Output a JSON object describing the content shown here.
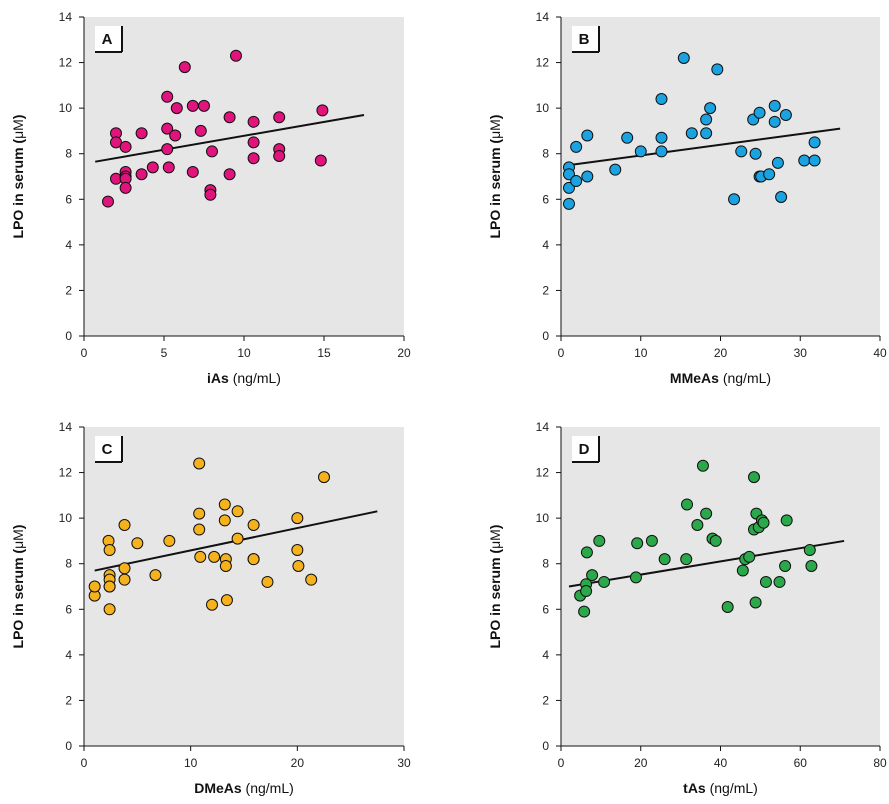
{
  "chart_data": [
    {
      "type": "scatter",
      "panel_label": "A",
      "ylabel": "LPO in serum (μM)",
      "ylabel_main": "LPO in serum (",
      "ylabel_unit": "μM",
      "ylabel_close": ")",
      "xlabel_bold": "iAs",
      "xlabel_unit": " (ng/mL)",
      "xlim": [
        0,
        20
      ],
      "ylim": [
        0,
        14
      ],
      "xticks": [
        "0",
        "5",
        "10",
        "15",
        "20"
      ],
      "yticks": [
        "0",
        "2",
        "4",
        "6",
        "8",
        "10",
        "12",
        "14"
      ],
      "grid": false,
      "color": "#e0147c",
      "trendline": [
        [
          0.7,
          7.65
        ],
        [
          17.5,
          9.7
        ]
      ],
      "x": [
        1.5,
        2.0,
        2.0,
        2.0,
        2.6,
        2.6,
        2.6,
        2.6,
        2.6,
        3.6,
        3.6,
        4.3,
        5.2,
        5.2,
        5.2,
        5.3,
        5.7,
        5.8,
        6.3,
        6.8,
        6.8,
        7.3,
        7.5,
        7.9,
        7.9,
        8.0,
        9.1,
        9.1,
        9.5,
        10.6,
        10.6,
        10.6,
        12.2,
        12.2,
        12.2,
        14.8,
        14.9
      ],
      "y": [
        5.9,
        8.9,
        8.5,
        6.9,
        8.3,
        7.2,
        7.0,
        6.9,
        6.5,
        8.9,
        7.1,
        7.4,
        10.5,
        9.1,
        8.2,
        7.4,
        8.8,
        10.0,
        11.8,
        10.1,
        7.2,
        9.0,
        10.1,
        6.4,
        6.2,
        8.1,
        9.6,
        7.1,
        12.3,
        9.4,
        8.5,
        7.8,
        9.6,
        8.2,
        7.9,
        7.7,
        9.9
      ]
    },
    {
      "type": "scatter",
      "panel_label": "B",
      "ylabel": "LPO in serum (μM)",
      "ylabel_main": "LPO in serum (",
      "ylabel_unit": "μM",
      "ylabel_close": ")",
      "xlabel_bold": "MMeAs",
      "xlabel_unit": " (ng/mL)",
      "xlim": [
        0,
        40
      ],
      "ylim": [
        0,
        14
      ],
      "xticks": [
        "0",
        "10",
        "20",
        "30",
        "40"
      ],
      "yticks": [
        "0",
        "2",
        "4",
        "6",
        "8",
        "10",
        "12",
        "14"
      ],
      "grid": false,
      "color": "#1aa3e0",
      "trendline": [
        [
          1,
          7.5
        ],
        [
          35,
          9.1
        ]
      ],
      "x": [
        1.0,
        1.0,
        1.0,
        1.0,
        1.9,
        1.9,
        3.3,
        3.3,
        6.8,
        8.3,
        10.0,
        12.6,
        12.6,
        12.6,
        15.4,
        16.4,
        18.2,
        18.2,
        18.7,
        19.6,
        21.7,
        22.6,
        24.1,
        24.4,
        24.9,
        24.9,
        25.1,
        26.1,
        26.8,
        26.8,
        27.2,
        27.6,
        28.2,
        30.5,
        31.8,
        31.8
      ],
      "y": [
        7.4,
        7.1,
        6.5,
        5.8,
        8.3,
        6.8,
        8.8,
        7.0,
        7.3,
        8.7,
        8.1,
        10.4,
        8.7,
        8.1,
        12.2,
        8.9,
        9.5,
        8.9,
        10.0,
        11.7,
        6.0,
        8.1,
        9.5,
        8.0,
        9.8,
        7.0,
        7.0,
        7.1,
        10.1,
        9.4,
        7.6,
        6.1,
        9.7,
        7.7,
        8.5,
        7.7
      ]
    },
    {
      "type": "scatter",
      "panel_label": "C",
      "ylabel": "LPO in serum (μM)",
      "ylabel_main": "LPO in serum (",
      "ylabel_unit": "μM",
      "ylabel_close": ")",
      "xlabel_bold": "DMeAs",
      "xlabel_unit": " (ng/mL)",
      "xlim": [
        0,
        30
      ],
      "ylim": [
        0,
        14
      ],
      "xticks": [
        "0",
        "10",
        "20",
        "30"
      ],
      "yticks": [
        "0",
        "2",
        "4",
        "6",
        "8",
        "10",
        "12",
        "14"
      ],
      "grid": false,
      "color": "#f5b21c",
      "trendline": [
        [
          1,
          7.7
        ],
        [
          27.5,
          10.3
        ]
      ],
      "x": [
        1.0,
        1.0,
        2.3,
        2.4,
        2.4,
        2.4,
        2.4,
        2.4,
        2.4,
        3.8,
        3.8,
        3.8,
        5.0,
        6.7,
        8.0,
        10.8,
        10.8,
        10.8,
        10.9,
        12.0,
        12.2,
        13.2,
        13.2,
        13.3,
        13.3,
        13.4,
        14.4,
        14.4,
        15.9,
        15.9,
        15.9,
        17.2,
        20.0,
        20.0,
        20.1,
        21.3,
        22.5
      ],
      "y": [
        6.6,
        7.0,
        9.0,
        8.6,
        7.5,
        7.3,
        7.0,
        6.0,
        7.0,
        9.7,
        7.8,
        7.3,
        8.9,
        7.5,
        9.0,
        12.4,
        10.2,
        9.5,
        8.3,
        6.2,
        8.3,
        10.6,
        9.9,
        8.2,
        7.9,
        6.4,
        10.3,
        9.1,
        9.7,
        8.2,
        8.2,
        7.2,
        10.0,
        8.6,
        7.9,
        7.3,
        11.8
      ]
    },
    {
      "type": "scatter",
      "panel_label": "D",
      "ylabel": "LPO in serum (μM)",
      "ylabel_main": "LPO in serum (",
      "ylabel_unit": "μM",
      "ylabel_close": ")",
      "xlabel_bold": "tAs",
      "xlabel_unit": " (ng/mL)",
      "xlim": [
        0,
        80
      ],
      "ylim": [
        0,
        14
      ],
      "xticks": [
        "0",
        "20",
        "40",
        "60",
        "80"
      ],
      "yticks": [
        "0",
        "2",
        "4",
        "6",
        "8",
        "10",
        "12",
        "14"
      ],
      "grid": false,
      "color": "#2aa84a",
      "trendline": [
        [
          2,
          7.0
        ],
        [
          71,
          9.0
        ]
      ],
      "x": [
        4.8,
        5.8,
        6.3,
        6.3,
        6.5,
        7.8,
        9.6,
        10.8,
        18.8,
        19.1,
        22.8,
        26.0,
        31.4,
        31.6,
        34.2,
        35.6,
        36.4,
        38.0,
        38.8,
        41.8,
        45.6,
        46.2,
        47.2,
        48.4,
        48.4,
        48.8,
        49.0,
        49.6,
        50.4,
        50.8,
        51.4,
        54.8,
        56.2,
        56.6,
        62.4,
        62.8
      ],
      "y": [
        6.6,
        5.9,
        7.1,
        6.8,
        8.5,
        7.5,
        9.0,
        7.2,
        7.4,
        8.9,
        9.0,
        8.2,
        8.2,
        10.6,
        9.7,
        12.3,
        10.2,
        9.1,
        9.0,
        6.1,
        7.7,
        8.2,
        8.3,
        11.8,
        9.5,
        6.3,
        10.2,
        9.6,
        9.9,
        9.8,
        7.2,
        7.2,
        7.9,
        9.9,
        8.6,
        7.9
      ]
    }
  ]
}
